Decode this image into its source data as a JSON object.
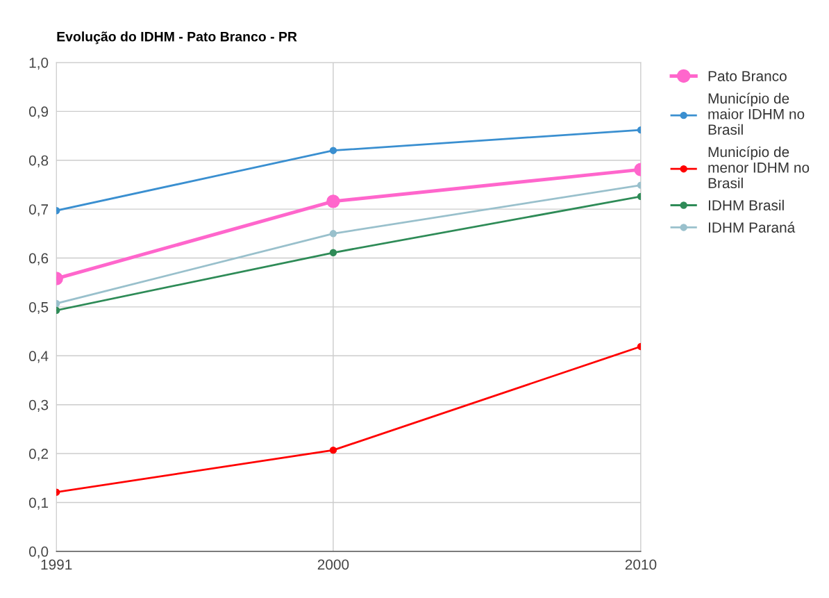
{
  "chart_data": {
    "type": "line",
    "title": "Evolução do IDHM - Pato Branco - PR",
    "x": [
      1991,
      2000,
      2010
    ],
    "series": [
      {
        "name": "Pato Branco",
        "color": "#ff66cc",
        "values": [
          0.558,
          0.716,
          0.781
        ]
      },
      {
        "name": "Município de\nmaior IDHM no\nBrasil",
        "color": "#3a8fd0",
        "values": [
          0.697,
          0.82,
          0.862
        ]
      },
      {
        "name": "Município de\nmenor IDHM no\nBrasil",
        "color": "#ff0000",
        "values": [
          0.121,
          0.207,
          0.419
        ]
      },
      {
        "name": "IDHM Brasil",
        "color": "#2e8b57",
        "values": [
          0.493,
          0.611,
          0.726
        ]
      },
      {
        "name": "IDHM Paraná",
        "color": "#99c0cc",
        "values": [
          0.507,
          0.65,
          0.749
        ]
      }
    ],
    "xlim": [
      1991,
      2010
    ],
    "xticks": [
      1991,
      2000,
      2010
    ],
    "ylim": [
      0,
      1
    ],
    "yticks": [
      {
        "value": 0,
        "label": "0,0"
      },
      {
        "value": 0.1,
        "label": "0,1"
      },
      {
        "value": 0.2,
        "label": "0,2"
      },
      {
        "value": 0.3,
        "label": "0,3"
      },
      {
        "value": 0.4,
        "label": "0,4"
      },
      {
        "value": 0.5,
        "label": "0,5"
      },
      {
        "value": 0.6,
        "label": "0,6"
      },
      {
        "value": 0.7,
        "label": "0,7"
      },
      {
        "value": 0.8,
        "label": "0,8"
      },
      {
        "value": 0.9,
        "label": "0,9"
      },
      {
        "value": 1,
        "label": "1,0"
      }
    ],
    "grid": true,
    "legend": "right",
    "marker": "circle",
    "line_style": "solid"
  }
}
